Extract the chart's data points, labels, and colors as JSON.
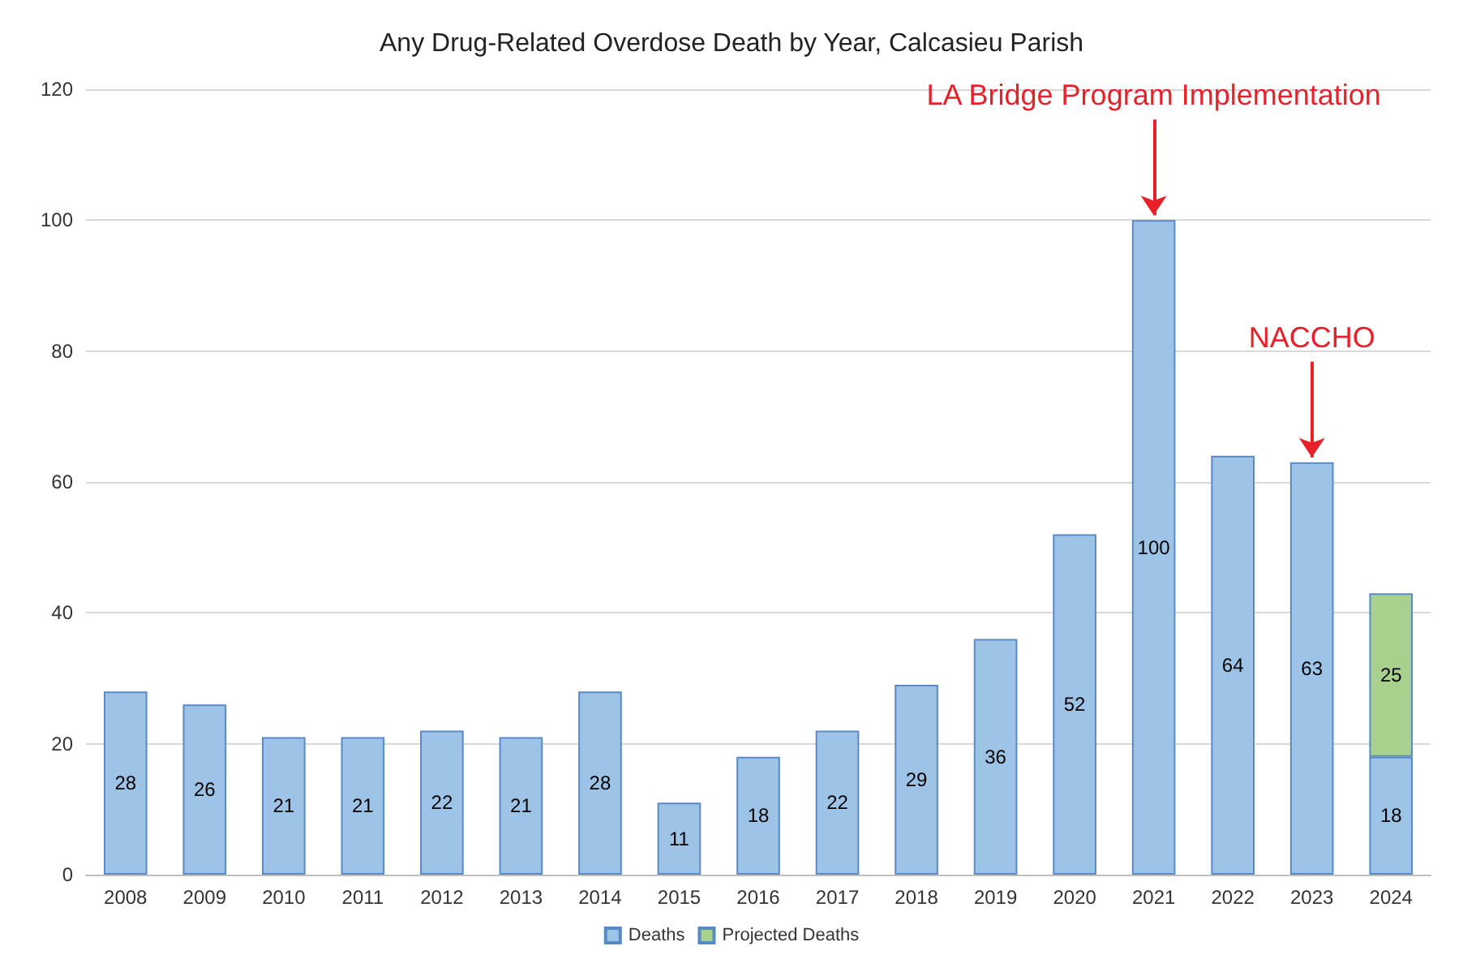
{
  "chart_data": {
    "type": "bar",
    "title": "Any Drug-Related Overdose Death by Year, Calcasieu Parish",
    "categories": [
      "2008",
      "2009",
      "2010",
      "2011",
      "2012",
      "2013",
      "2014",
      "2015",
      "2016",
      "2017",
      "2018",
      "2019",
      "2020",
      "2021",
      "2022",
      "2023",
      "2024"
    ],
    "stacked": true,
    "series": [
      {
        "name": "Deaths",
        "color": "#9dc3e6",
        "values": [
          28,
          26,
          21,
          21,
          22,
          21,
          28,
          11,
          18,
          22,
          29,
          36,
          52,
          100,
          64,
          63,
          18
        ]
      },
      {
        "name": "Projected Deaths",
        "color": "#a9d18e",
        "values": [
          null,
          null,
          null,
          null,
          null,
          null,
          null,
          null,
          null,
          null,
          null,
          null,
          null,
          null,
          null,
          null,
          25
        ]
      }
    ],
    "ylim": [
      0,
      120
    ],
    "yticks": [
      0,
      20,
      40,
      60,
      80,
      100,
      120
    ],
    "grid": "y",
    "legend": "bottom",
    "data_labels": true,
    "annotations": [
      {
        "text": "LA Bridge Program Implementation",
        "x": "2021",
        "y": 100
      },
      {
        "text": "NACCHO",
        "x": "2023",
        "y": 63
      }
    ]
  }
}
